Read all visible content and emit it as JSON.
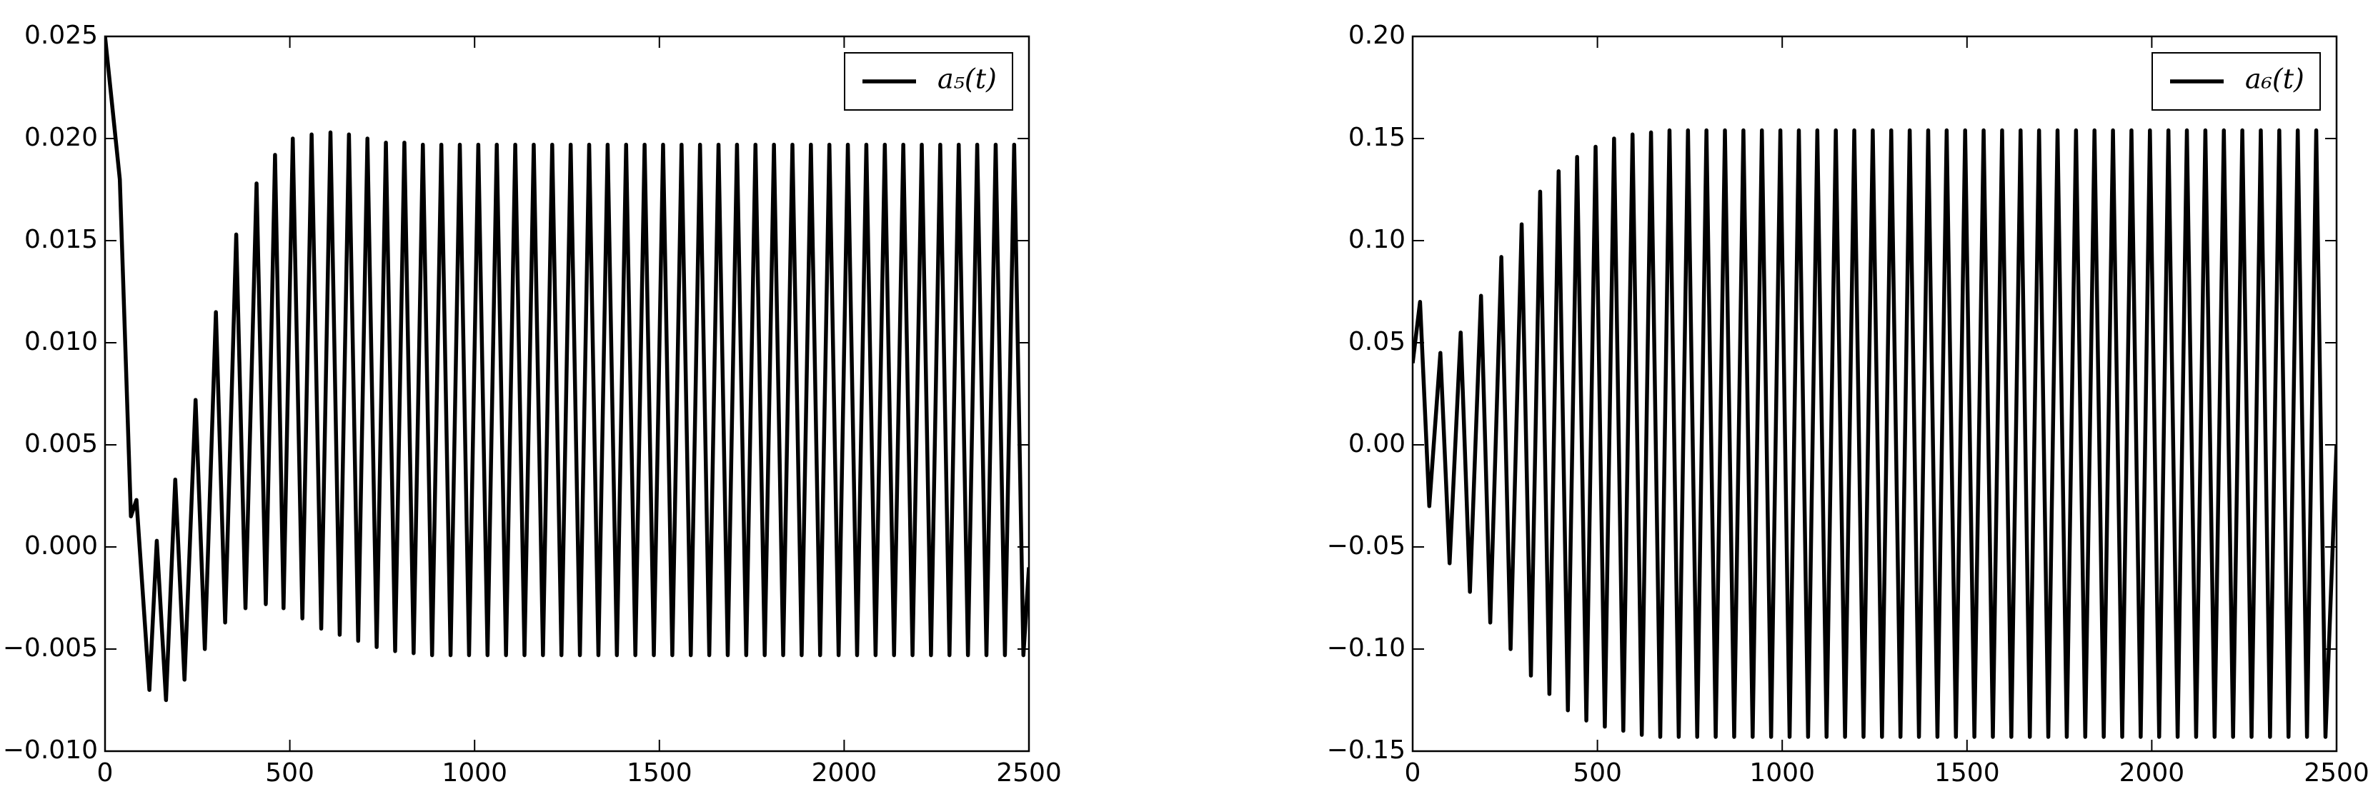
{
  "chart_data": [
    {
      "type": "line",
      "x": [
        0,
        40,
        70,
        85,
        120,
        140,
        165,
        190,
        215,
        245,
        270,
        300,
        325,
        355,
        380,
        410,
        435,
        460,
        483,
        508,
        534,
        559,
        585,
        610,
        635,
        660,
        685,
        710,
        735,
        760,
        785,
        810,
        835,
        860,
        885,
        910,
        935,
        960,
        985,
        1010,
        1035,
        1060,
        1085,
        1110,
        1135,
        1160,
        1185,
        1210,
        1235,
        1260,
        1285,
        1310,
        1335,
        1360,
        1385,
        1410,
        1435,
        1460,
        1485,
        1510,
        1535,
        1560,
        1585,
        1610,
        1635,
        1660,
        1685,
        1710,
        1735,
        1760,
        1785,
        1810,
        1835,
        1860,
        1885,
        1910,
        1935,
        1960,
        1985,
        2010,
        2035,
        2060,
        2085,
        2110,
        2135,
        2160,
        2185,
        2210,
        2235,
        2260,
        2285,
        2310,
        2335,
        2360,
        2385,
        2410,
        2435,
        2460,
        2485,
        2500
      ],
      "series": [
        {
          "name": "a₅(t)",
          "color": "#000000",
          "values": [
            0.025,
            0.018,
            0.0015,
            0.0023,
            -0.007,
            0.0003,
            -0.0075,
            0.0033,
            -0.0065,
            0.0072,
            -0.005,
            0.0115,
            -0.0037,
            0.0153,
            -0.003,
            0.0178,
            -0.0028,
            0.0192,
            -0.003,
            0.02,
            -0.0035,
            0.0202,
            -0.004,
            0.0203,
            -0.0043,
            0.0202,
            -0.0046,
            0.02,
            -0.0049,
            0.0198,
            -0.0051,
            0.0198,
            -0.0052,
            0.0197,
            -0.0053,
            0.0197,
            -0.0053,
            0.0197,
            -0.0053,
            0.0197,
            -0.0053,
            0.0197,
            -0.0053,
            0.0197,
            -0.0053,
            0.0197,
            -0.0053,
            0.0197,
            -0.0053,
            0.0197,
            -0.0053,
            0.0197,
            -0.0053,
            0.0197,
            -0.0053,
            0.0197,
            -0.0053,
            0.0197,
            -0.0053,
            0.0197,
            -0.0053,
            0.0197,
            -0.0053,
            0.0197,
            -0.0053,
            0.0197,
            -0.0053,
            0.0197,
            -0.0053,
            0.0197,
            -0.0053,
            0.0197,
            -0.0053,
            0.0197,
            -0.0053,
            0.0197,
            -0.0053,
            0.0197,
            -0.0053,
            0.0197,
            -0.0053,
            0.0197,
            -0.0053,
            0.0197,
            -0.0053,
            0.0197,
            -0.0053,
            0.0197,
            -0.0053,
            0.0197,
            -0.0053,
            0.0197,
            -0.0053,
            0.0197,
            -0.0053,
            0.0197,
            -0.0053,
            0.0197,
            -0.0053,
            -0.001
          ]
        }
      ],
      "xlim": [
        0,
        2500
      ],
      "xticks": [
        0,
        500,
        1000,
        1500,
        2000,
        2500
      ],
      "ylim": [
        -0.01,
        0.025
      ],
      "yticks": [
        {
          "value": -0.01,
          "label": "−0.010"
        },
        {
          "value": -0.005,
          "label": "−0.005"
        },
        {
          "value": 0,
          "label": "0.000"
        },
        0.005,
        {
          "value": 0.01,
          "label": "0.010"
        },
        0.015,
        {
          "value": 0.02,
          "label": "0.020"
        },
        0.025
      ],
      "legend": "upper right",
      "grid": false
    },
    {
      "type": "line",
      "x": [
        0,
        20,
        45,
        75,
        100,
        130,
        155,
        185,
        210,
        240,
        265,
        295,
        320,
        345,
        370,
        395,
        420,
        445,
        470,
        495,
        520,
        545,
        570,
        595,
        620,
        645,
        670,
        695,
        720,
        745,
        770,
        795,
        820,
        845,
        870,
        895,
        920,
        945,
        970,
        995,
        1020,
        1045,
        1070,
        1095,
        1120,
        1145,
        1170,
        1195,
        1220,
        1245,
        1270,
        1295,
        1320,
        1345,
        1370,
        1395,
        1420,
        1445,
        1470,
        1495,
        1520,
        1545,
        1570,
        1595,
        1620,
        1645,
        1670,
        1695,
        1720,
        1745,
        1770,
        1795,
        1820,
        1845,
        1870,
        1895,
        1920,
        1945,
        1970,
        1995,
        2020,
        2045,
        2070,
        2095,
        2120,
        2145,
        2170,
        2195,
        2220,
        2245,
        2270,
        2295,
        2320,
        2345,
        2370,
        2395,
        2420,
        2445,
        2470,
        2500
      ],
      "series": [
        {
          "name": "a₆(t)",
          "color": "#000000",
          "values": [
            0.04,
            0.07,
            -0.03,
            0.045,
            -0.058,
            0.055,
            -0.072,
            0.073,
            -0.087,
            0.092,
            -0.1,
            0.108,
            -0.113,
            0.124,
            -0.122,
            0.134,
            -0.13,
            0.141,
            -0.135,
            0.146,
            -0.138,
            0.15,
            -0.14,
            0.152,
            -0.142,
            0.153,
            -0.143,
            0.154,
            -0.143,
            0.154,
            -0.143,
            0.154,
            -0.143,
            0.154,
            -0.143,
            0.154,
            -0.143,
            0.154,
            -0.143,
            0.154,
            -0.143,
            0.154,
            -0.143,
            0.154,
            -0.143,
            0.154,
            -0.143,
            0.154,
            -0.143,
            0.154,
            -0.143,
            0.154,
            -0.143,
            0.154,
            -0.143,
            0.154,
            -0.143,
            0.154,
            -0.143,
            0.154,
            -0.143,
            0.154,
            -0.143,
            0.154,
            -0.143,
            0.154,
            -0.143,
            0.154,
            -0.143,
            0.154,
            -0.143,
            0.154,
            -0.143,
            0.154,
            -0.143,
            0.154,
            -0.143,
            0.154,
            -0.143,
            0.154,
            -0.143,
            0.154,
            -0.143,
            0.154,
            -0.143,
            0.154,
            -0.143,
            0.154,
            -0.143,
            0.154,
            -0.143,
            0.154,
            -0.143,
            0.154,
            -0.143,
            0.154,
            -0.143,
            0.154,
            -0.143,
            0
          ]
        }
      ],
      "xlim": [
        0,
        2500
      ],
      "xticks": [
        0,
        500,
        1000,
        1500,
        2000,
        2500
      ],
      "ylim": [
        -0.15,
        0.2
      ],
      "yticks": [
        {
          "value": -0.15,
          "label": "−0.15"
        },
        {
          "value": -0.1,
          "label": "−0.10"
        },
        {
          "value": -0.05,
          "label": "−0.05"
        },
        {
          "value": 0,
          "label": "0.00"
        },
        0.05,
        {
          "value": 0.1,
          "label": "0.10"
        },
        0.15,
        {
          "value": 0.2,
          "label": "0.20"
        }
      ],
      "legend": "upper right",
      "grid": false
    }
  ]
}
